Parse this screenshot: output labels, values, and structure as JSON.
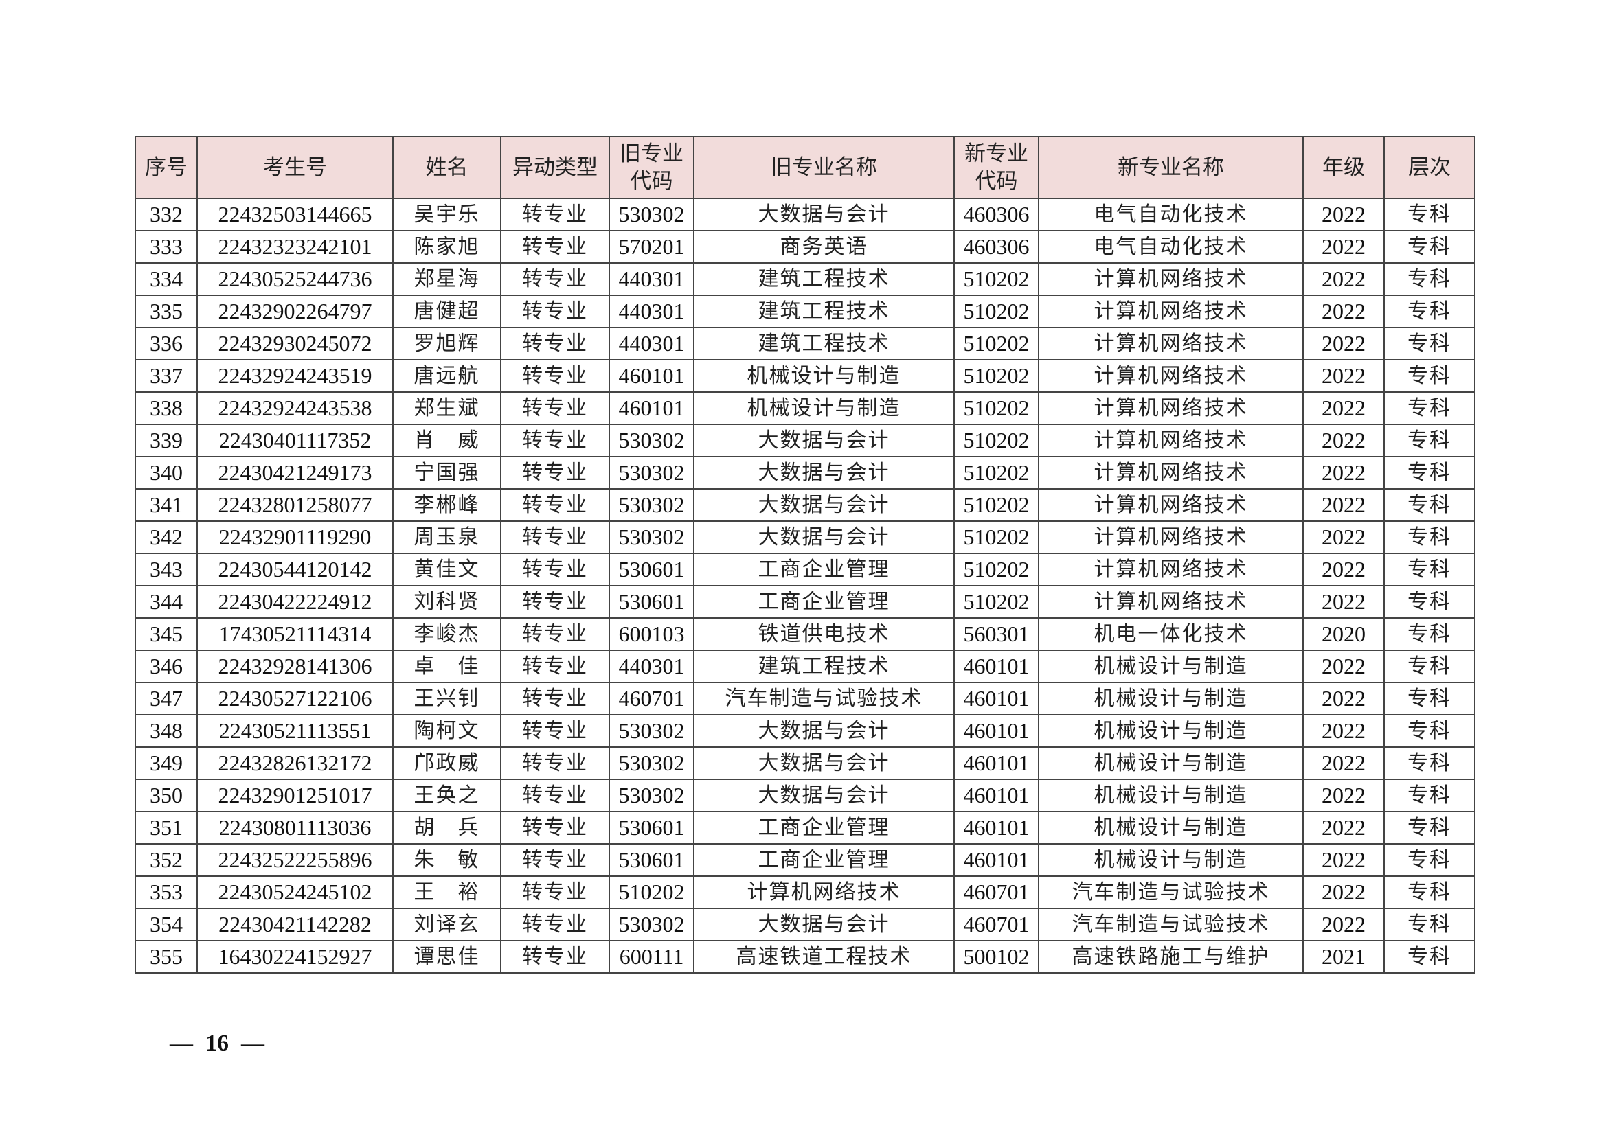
{
  "table": {
    "headers": [
      "序号",
      "考生号",
      "姓名",
      "异动类型",
      "旧专业\n代码",
      "旧专业名称",
      "新专业\n代码",
      "新专业名称",
      "年级",
      "层次"
    ],
    "rows": [
      [
        "332",
        "22432503144665",
        "吴宇乐",
        "转专业",
        "530302",
        "大数据与会计",
        "460306",
        "电气自动化技术",
        "2022",
        "专科"
      ],
      [
        "333",
        "22432323242101",
        "陈家旭",
        "转专业",
        "570201",
        "商务英语",
        "460306",
        "电气自动化技术",
        "2022",
        "专科"
      ],
      [
        "334",
        "22430525244736",
        "郑星海",
        "转专业",
        "440301",
        "建筑工程技术",
        "510202",
        "计算机网络技术",
        "2022",
        "专科"
      ],
      [
        "335",
        "22432902264797",
        "唐健超",
        "转专业",
        "440301",
        "建筑工程技术",
        "510202",
        "计算机网络技术",
        "2022",
        "专科"
      ],
      [
        "336",
        "22432930245072",
        "罗旭辉",
        "转专业",
        "440301",
        "建筑工程技术",
        "510202",
        "计算机网络技术",
        "2022",
        "专科"
      ],
      [
        "337",
        "22432924243519",
        "唐远航",
        "转专业",
        "460101",
        "机械设计与制造",
        "510202",
        "计算机网络技术",
        "2022",
        "专科"
      ],
      [
        "338",
        "22432924243538",
        "郑生斌",
        "转专业",
        "460101",
        "机械设计与制造",
        "510202",
        "计算机网络技术",
        "2022",
        "专科"
      ],
      [
        "339",
        "22430401117352",
        "肖　威",
        "转专业",
        "530302",
        "大数据与会计",
        "510202",
        "计算机网络技术",
        "2022",
        "专科"
      ],
      [
        "340",
        "22430421249173",
        "宁国强",
        "转专业",
        "530302",
        "大数据与会计",
        "510202",
        "计算机网络技术",
        "2022",
        "专科"
      ],
      [
        "341",
        "22432801258077",
        "李郴峰",
        "转专业",
        "530302",
        "大数据与会计",
        "510202",
        "计算机网络技术",
        "2022",
        "专科"
      ],
      [
        "342",
        "22432901119290",
        "周玉泉",
        "转专业",
        "530302",
        "大数据与会计",
        "510202",
        "计算机网络技术",
        "2022",
        "专科"
      ],
      [
        "343",
        "22430544120142",
        "黄佳文",
        "转专业",
        "530601",
        "工商企业管理",
        "510202",
        "计算机网络技术",
        "2022",
        "专科"
      ],
      [
        "344",
        "22430422224912",
        "刘科贤",
        "转专业",
        "530601",
        "工商企业管理",
        "510202",
        "计算机网络技术",
        "2022",
        "专科"
      ],
      [
        "345",
        "17430521114314",
        "李峻杰",
        "转专业",
        "600103",
        "铁道供电技术",
        "560301",
        "机电一体化技术",
        "2020",
        "专科"
      ],
      [
        "346",
        "22432928141306",
        "卓　佳",
        "转专业",
        "440301",
        "建筑工程技术",
        "460101",
        "机械设计与制造",
        "2022",
        "专科"
      ],
      [
        "347",
        "22430527122106",
        "王兴钊",
        "转专业",
        "460701",
        "汽车制造与试验技术",
        "460101",
        "机械设计与制造",
        "2022",
        "专科"
      ],
      [
        "348",
        "22430521113551",
        "陶柯文",
        "转专业",
        "530302",
        "大数据与会计",
        "460101",
        "机械设计与制造",
        "2022",
        "专科"
      ],
      [
        "349",
        "22432826132172",
        "邝政威",
        "转专业",
        "530302",
        "大数据与会计",
        "460101",
        "机械设计与制造",
        "2022",
        "专科"
      ],
      [
        "350",
        "22432901251017",
        "王奂之",
        "转专业",
        "530302",
        "大数据与会计",
        "460101",
        "机械设计与制造",
        "2022",
        "专科"
      ],
      [
        "351",
        "22430801113036",
        "胡　兵",
        "转专业",
        "530601",
        "工商企业管理",
        "460101",
        "机械设计与制造",
        "2022",
        "专科"
      ],
      [
        "352",
        "22432522255896",
        "朱　敏",
        "转专业",
        "530601",
        "工商企业管理",
        "460101",
        "机械设计与制造",
        "2022",
        "专科"
      ],
      [
        "353",
        "22430524245102",
        "王　裕",
        "转专业",
        "510202",
        "计算机网络技术",
        "460701",
        "汽车制造与试验技术",
        "2022",
        "专科"
      ],
      [
        "354",
        "22430421142282",
        "刘译玄",
        "转专业",
        "530302",
        "大数据与会计",
        "460701",
        "汽车制造与试验技术",
        "2022",
        "专科"
      ],
      [
        "355",
        "16430224152927",
        "谭思佳",
        "转专业",
        "600111",
        "高速铁道工程技术",
        "500102",
        "高速铁路施工与维护",
        "2021",
        "专科"
      ]
    ]
  },
  "footer": {
    "dash_left": "—",
    "page_number": "16",
    "dash_right": "—"
  },
  "colors": {
    "header_bg": "#f2dcdb",
    "border": "#444444"
  }
}
